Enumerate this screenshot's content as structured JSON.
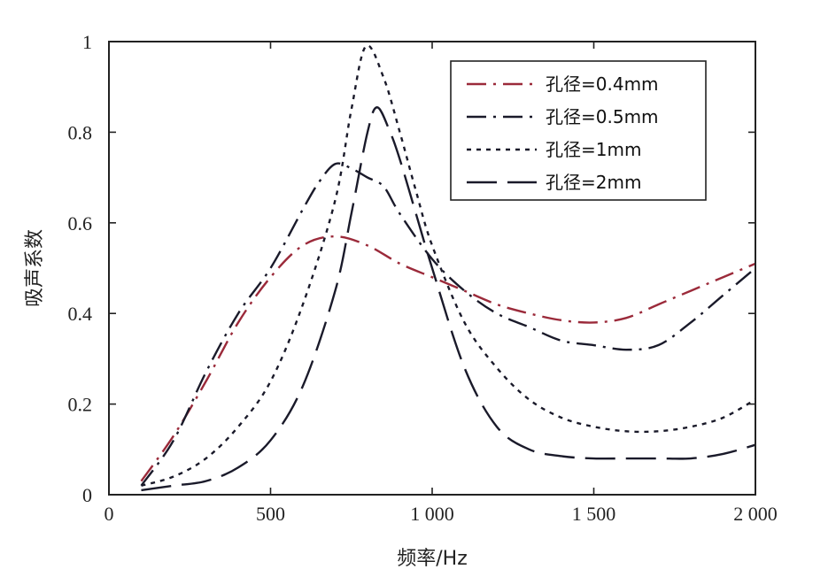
{
  "chart_data": {
    "type": "line",
    "title": "",
    "xlabel": "频率/Hz",
    "ylabel": "吸声系数",
    "xlim": [
      0,
      2000
    ],
    "ylim": [
      0,
      1
    ],
    "xticks": [
      0,
      500,
      1000,
      1500,
      2000
    ],
    "xtick_labels": [
      "0",
      "500",
      "1 000",
      "1 500",
      "2 000"
    ],
    "yticks": [
      0,
      0.2,
      0.4,
      0.6,
      0.8,
      1
    ],
    "ytick_labels": [
      "0",
      "0.2",
      "0.4",
      "0.6",
      "0.8",
      "1"
    ],
    "grid": false,
    "legend_position": "upper right",
    "series": [
      {
        "name": "孔径=0.4mm",
        "color": "#9b2a3a",
        "dash": "22,8,3,8",
        "x": [
          100,
          200,
          300,
          400,
          500,
          600,
          700,
          800,
          900,
          1000,
          1100,
          1200,
          1300,
          1400,
          1500,
          1600,
          1700,
          1800,
          1900,
          2000
        ],
        "y": [
          0.03,
          0.13,
          0.25,
          0.38,
          0.48,
          0.55,
          0.57,
          0.55,
          0.51,
          0.48,
          0.45,
          0.42,
          0.4,
          0.385,
          0.38,
          0.39,
          0.42,
          0.45,
          0.48,
          0.51
        ]
      },
      {
        "name": "孔径=0.5mm",
        "color": "#1a1a2a",
        "dash": "22,8,3,8",
        "x": [
          100,
          200,
          300,
          400,
          500,
          600,
          650,
          700,
          750,
          800,
          850,
          900,
          1000,
          1100,
          1200,
          1300,
          1400,
          1500,
          1600,
          1700,
          1800,
          1900,
          2000
        ],
        "y": [
          0.02,
          0.12,
          0.27,
          0.4,
          0.5,
          0.63,
          0.69,
          0.73,
          0.72,
          0.7,
          0.68,
          0.62,
          0.52,
          0.45,
          0.4,
          0.37,
          0.34,
          0.33,
          0.32,
          0.33,
          0.38,
          0.44,
          0.5
        ]
      },
      {
        "name": "孔径=1mm",
        "color": "#1a1a2a",
        "dash": "5,6",
        "x": [
          100,
          200,
          300,
          400,
          500,
          600,
          700,
          750,
          795,
          850,
          900,
          950,
          1000,
          1100,
          1200,
          1300,
          1400,
          1500,
          1600,
          1700,
          1800,
          1900,
          2000
        ],
        "y": [
          0.02,
          0.04,
          0.08,
          0.15,
          0.25,
          0.42,
          0.65,
          0.85,
          0.99,
          0.92,
          0.8,
          0.67,
          0.55,
          0.38,
          0.28,
          0.21,
          0.17,
          0.15,
          0.14,
          0.14,
          0.15,
          0.17,
          0.21
        ]
      },
      {
        "name": "孔径=2mm",
        "color": "#1a1a2a",
        "dash": "34,12",
        "x": [
          100,
          200,
          300,
          400,
          500,
          600,
          700,
          750,
          800,
          830,
          870,
          900,
          950,
          1000,
          1100,
          1200,
          1300,
          1400,
          1500,
          1600,
          1700,
          1800,
          1900,
          2000
        ],
        "y": [
          0.01,
          0.02,
          0.03,
          0.06,
          0.12,
          0.24,
          0.45,
          0.62,
          0.8,
          0.855,
          0.8,
          0.74,
          0.62,
          0.5,
          0.28,
          0.15,
          0.1,
          0.085,
          0.08,
          0.08,
          0.08,
          0.08,
          0.09,
          0.11
        ]
      }
    ]
  }
}
